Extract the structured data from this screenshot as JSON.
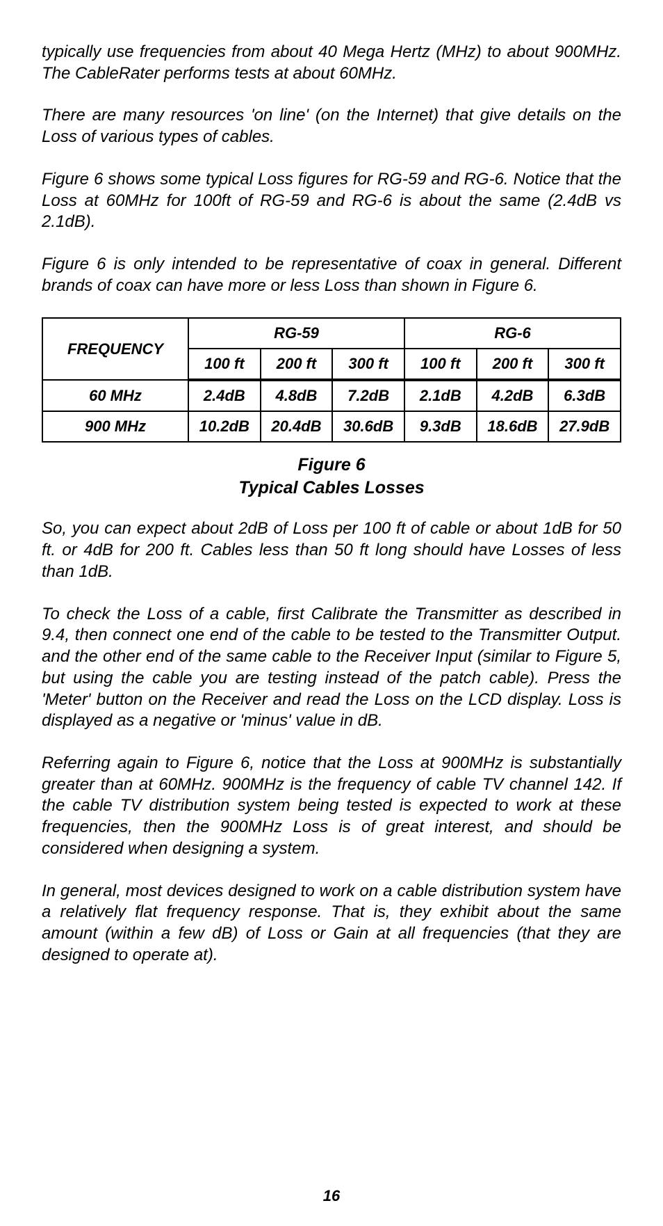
{
  "paragraphs": {
    "p1": "typically use frequencies from about 40 Mega Hertz (MHz) to about 900MHz. The CableRater performs tests at about 60MHz.",
    "p2": "There are many resources 'on line' (on the Internet) that give details on the Loss of various types of cables.",
    "p3": "Figure 6 shows some typical Loss figures for RG-59 and RG-6. Notice that the Loss at 60MHz for 100ft of RG-59 and RG-6 is about the same  (2.4dB vs 2.1dB).",
    "p4": "Figure 6 is only intended to be representative of coax in general. Different brands of coax can have more or less Loss than shown in Figure 6.",
    "p5": "So, you can expect about 2dB of Loss per 100 ft of cable or about 1dB for 50 ft. or 4dB for 200 ft. Cables less than 50 ft long should have Losses of less than 1dB.",
    "p6": "To check the Loss of a cable, first Calibrate the Transmitter as described in 9.4, then connect one end of the cable to be tested to the Transmitter Output. and the other end of the same cable to the Receiver Input (similar to Figure 5, but using the cable you are testing instead of the patch cable). Press the 'Meter' button on the Receiver and read the Loss on the LCD display. Loss is displayed as a negative or 'minus' value in dB.",
    "p7": "Referring again to Figure 6, notice that the Loss at 900MHz is substantially greater than at 60MHz. 900MHz is the frequency of cable TV channel 142. If the cable TV distribution system being tested is expected to work at these frequencies, then the 900MHz Loss is of great interest, and should be considered when designing a system.",
    "p8": "In general, most devices designed to work on a cable distribution system have a relatively flat frequency response. That is, they exhibit about the same amount (within a few dB) of Loss or Gain at all frequencies (that they are designed to operate at)."
  },
  "table": {
    "type": "table",
    "group_headers": [
      "RG-59",
      "RG-6"
    ],
    "sub_headers": [
      "100 ft",
      "200 ft",
      "300 ft",
      "100 ft",
      "200 ft",
      "300 ft"
    ],
    "row_label_header": "FREQUENCY",
    "rows": [
      {
        "label": "60 MHz",
        "cells": [
          "2.4dB",
          "4.8dB",
          "7.2dB",
          "2.1dB",
          "4.2dB",
          "6.3dB"
        ]
      },
      {
        "label": "900 MHz",
        "cells": [
          "10.2dB",
          "20.4dB",
          "30.6dB",
          "9.3dB",
          "18.6dB",
          "27.9dB"
        ]
      }
    ],
    "border_color": "#000000",
    "font_size": 22,
    "header_font_size": 22
  },
  "figure_caption": {
    "line1": "Figure 6",
    "line2": "Typical Cables Losses"
  },
  "page_number": "16",
  "colors": {
    "background": "#ffffff",
    "text": "#000000"
  }
}
